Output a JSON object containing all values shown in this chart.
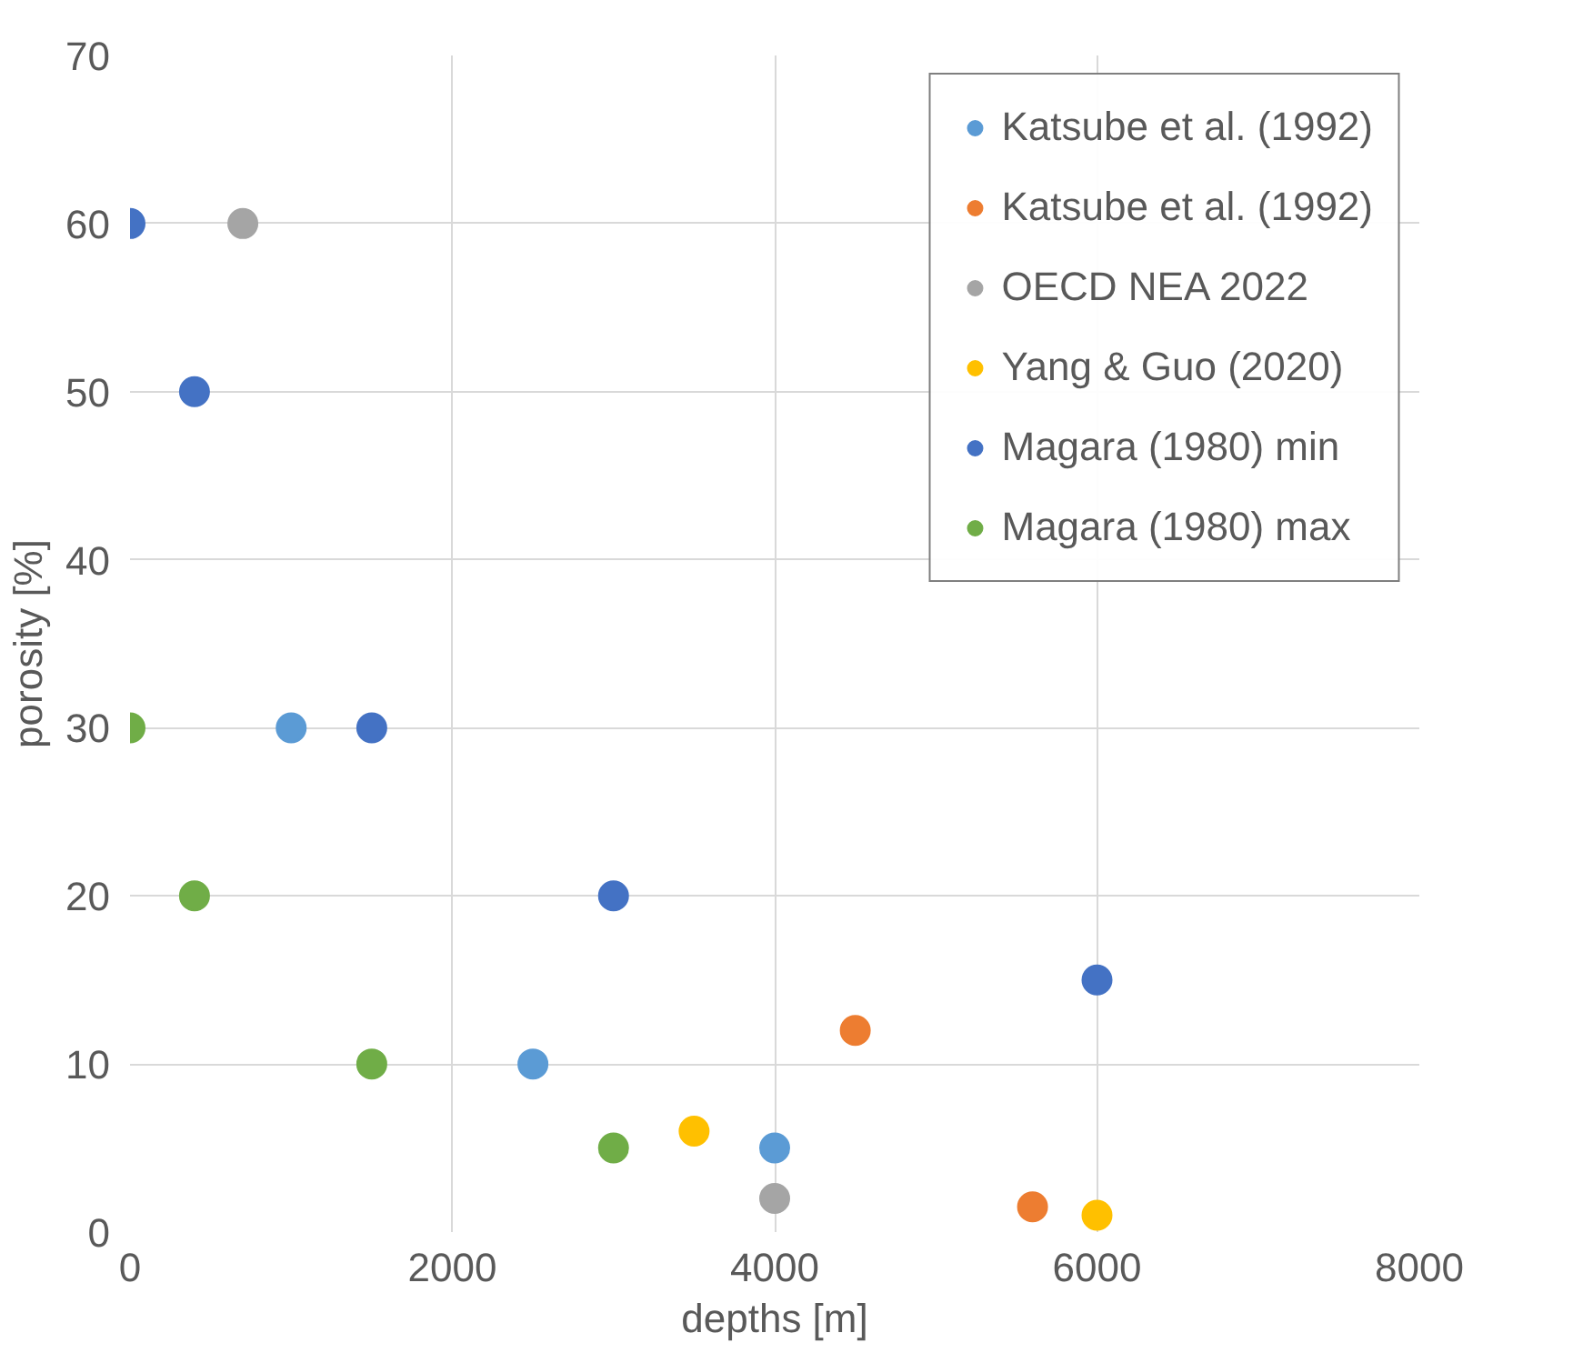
{
  "chart_data": {
    "type": "scatter",
    "xlabel": "depths [m]",
    "ylabel": "porosity [%]",
    "xlim": [
      0,
      8000
    ],
    "ylim": [
      0,
      70
    ],
    "xticks": [
      0,
      2000,
      4000,
      6000,
      8000
    ],
    "yticks": [
      0,
      10,
      20,
      30,
      40,
      50,
      60,
      70
    ],
    "grid": true,
    "legend": "top right",
    "marker": "circle",
    "series": [
      {
        "name": "Katsube et al. (1992)",
        "color": "#5b9bd5",
        "x": [
          1000,
          2500,
          4000
        ],
        "values": [
          30,
          10,
          5
        ]
      },
      {
        "name": "Katsube et al. (1992)",
        "color": "#ed7d31",
        "x": [
          4500,
          5600
        ],
        "values": [
          12,
          1.5
        ]
      },
      {
        "name": "OECD NEA 2022",
        "color": "#a5a5a5",
        "x": [
          700,
          4000
        ],
        "values": [
          60,
          2
        ]
      },
      {
        "name": "Yang & Guo (2020)",
        "color": "#ffc000",
        "x": [
          3500,
          6000
        ],
        "values": [
          6,
          1
        ]
      },
      {
        "name": "Magara (1980) min",
        "color": "#4472c4",
        "x": [
          0,
          400,
          1500,
          3000,
          6000
        ],
        "values": [
          60,
          50,
          30,
          20,
          15
        ]
      },
      {
        "name": "Magara (1980) max",
        "color": "#70ad47",
        "x": [
          0,
          400,
          1500,
          3000
        ],
        "values": [
          30,
          20,
          10,
          5
        ]
      }
    ]
  }
}
